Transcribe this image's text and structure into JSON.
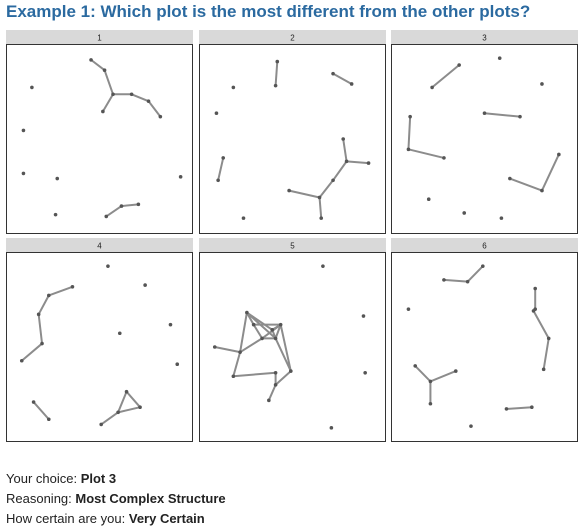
{
  "heading": "Example 1: Which plot is the most different from the other plots?",
  "footer": {
    "choice_label": "Your choice:",
    "choice_value": "Plot 3",
    "reasoning_label": "Reasoning:",
    "reasoning_value": "Most Complex Structure",
    "certainty_label": "How certain are you:",
    "certainty_value": "Very Certain"
  },
  "colors": {
    "heading": "#2b6aa0",
    "strip": "#d9d9d9",
    "panel_border": "#333333",
    "edge": "#8c8c8c",
    "node": "#555555"
  },
  "chart_data": {
    "type": "scatter",
    "description_kind": "lineup of network graphs",
    "xlim": [
      0,
      1
    ],
    "ylim": [
      0,
      1
    ],
    "grid": false,
    "legend": "none",
    "panels": [
      {
        "label": "1",
        "nodes": [
          [
            0.45,
            0.96
          ],
          [
            0.53,
            0.9
          ],
          [
            0.58,
            0.76
          ],
          [
            0.52,
            0.66
          ],
          [
            0.69,
            0.76
          ],
          [
            0.79,
            0.72
          ],
          [
            0.86,
            0.63
          ],
          [
            0.1,
            0.8
          ],
          [
            0.05,
            0.55
          ],
          [
            0.05,
            0.3
          ],
          [
            0.25,
            0.27
          ],
          [
            0.98,
            0.28
          ],
          [
            0.24,
            0.06
          ],
          [
            0.54,
            0.05
          ],
          [
            0.63,
            0.11
          ],
          [
            0.73,
            0.12
          ]
        ],
        "edges": [
          [
            0,
            1
          ],
          [
            1,
            2
          ],
          [
            2,
            3
          ],
          [
            2,
            4
          ],
          [
            4,
            5
          ],
          [
            5,
            6
          ],
          [
            13,
            14
          ],
          [
            14,
            15
          ]
        ]
      },
      {
        "label": "2",
        "nodes": [
          [
            0.41,
            0.95
          ],
          [
            0.4,
            0.81
          ],
          [
            0.15,
            0.8
          ],
          [
            0.74,
            0.88
          ],
          [
            0.85,
            0.82
          ],
          [
            0.05,
            0.65
          ],
          [
            0.09,
            0.39
          ],
          [
            0.06,
            0.26
          ],
          [
            0.8,
            0.5
          ],
          [
            0.82,
            0.37
          ],
          [
            0.95,
            0.36
          ],
          [
            0.74,
            0.26
          ],
          [
            0.66,
            0.16
          ],
          [
            0.48,
            0.2
          ],
          [
            0.67,
            0.04
          ],
          [
            0.21,
            0.04
          ]
        ],
        "edges": [
          [
            0,
            1
          ],
          [
            3,
            4
          ],
          [
            6,
            7
          ],
          [
            8,
            9
          ],
          [
            9,
            10
          ],
          [
            9,
            11
          ],
          [
            11,
            12
          ],
          [
            12,
            13
          ],
          [
            12,
            14
          ]
        ]
      },
      {
        "label": "3",
        "nodes": [
          [
            0.59,
            0.97
          ],
          [
            0.35,
            0.93
          ],
          [
            0.19,
            0.8
          ],
          [
            0.84,
            0.82
          ],
          [
            0.5,
            0.65
          ],
          [
            0.71,
            0.63
          ],
          [
            0.06,
            0.63
          ],
          [
            0.05,
            0.44
          ],
          [
            0.26,
            0.39
          ],
          [
            0.94,
            0.41
          ],
          [
            0.84,
            0.2
          ],
          [
            0.65,
            0.27
          ],
          [
            0.17,
            0.15
          ],
          [
            0.38,
            0.07
          ],
          [
            0.6,
            0.04
          ]
        ],
        "edges": [
          [
            1,
            2
          ],
          [
            4,
            5
          ],
          [
            6,
            7
          ],
          [
            7,
            8
          ],
          [
            9,
            10
          ],
          [
            10,
            11
          ]
        ]
      },
      {
        "label": "4",
        "nodes": [
          [
            0.55,
            0.97
          ],
          [
            0.34,
            0.85
          ],
          [
            0.2,
            0.8
          ],
          [
            0.77,
            0.86
          ],
          [
            0.14,
            0.69
          ],
          [
            0.16,
            0.52
          ],
          [
            0.04,
            0.42
          ],
          [
            0.62,
            0.58
          ],
          [
            0.92,
            0.63
          ],
          [
            0.96,
            0.4
          ],
          [
            0.11,
            0.18
          ],
          [
            0.2,
            0.08
          ],
          [
            0.66,
            0.24
          ],
          [
            0.61,
            0.12
          ],
          [
            0.74,
            0.15
          ],
          [
            0.51,
            0.05
          ]
        ],
        "edges": [
          [
            1,
            2
          ],
          [
            2,
            4
          ],
          [
            4,
            5
          ],
          [
            5,
            6
          ],
          [
            10,
            11
          ],
          [
            12,
            13
          ],
          [
            12,
            14
          ],
          [
            13,
            14
          ],
          [
            13,
            15
          ]
        ]
      },
      {
        "label": "5",
        "nodes": [
          [
            0.68,
            0.97
          ],
          [
            0.92,
            0.68
          ],
          [
            0.93,
            0.35
          ],
          [
            0.73,
            0.03
          ],
          [
            0.23,
            0.7
          ],
          [
            0.27,
            0.63
          ],
          [
            0.32,
            0.55
          ],
          [
            0.38,
            0.6
          ],
          [
            0.43,
            0.63
          ],
          [
            0.4,
            0.55
          ],
          [
            0.19,
            0.47
          ],
          [
            0.04,
            0.5
          ],
          [
            0.4,
            0.35
          ],
          [
            0.15,
            0.33
          ],
          [
            0.4,
            0.28
          ],
          [
            0.49,
            0.36
          ],
          [
            0.36,
            0.19
          ]
        ],
        "edges": [
          [
            4,
            5
          ],
          [
            4,
            7
          ],
          [
            4,
            9
          ],
          [
            5,
            6
          ],
          [
            5,
            8
          ],
          [
            6,
            8
          ],
          [
            6,
            9
          ],
          [
            7,
            8
          ],
          [
            7,
            9
          ],
          [
            8,
            9
          ],
          [
            4,
            10
          ],
          [
            6,
            10
          ],
          [
            10,
            11
          ],
          [
            10,
            13
          ],
          [
            12,
            13
          ],
          [
            12,
            14
          ],
          [
            14,
            15
          ],
          [
            14,
            16
          ],
          [
            8,
            15
          ],
          [
            9,
            15
          ]
        ]
      },
      {
        "label": "6",
        "nodes": [
          [
            0.26,
            0.89
          ],
          [
            0.4,
            0.88
          ],
          [
            0.49,
            0.97
          ],
          [
            0.8,
            0.84
          ],
          [
            0.8,
            0.72
          ],
          [
            0.05,
            0.72
          ],
          [
            0.79,
            0.71
          ],
          [
            0.88,
            0.55
          ],
          [
            0.85,
            0.37
          ],
          [
            0.09,
            0.39
          ],
          [
            0.18,
            0.3
          ],
          [
            0.18,
            0.17
          ],
          [
            0.33,
            0.36
          ],
          [
            0.63,
            0.14
          ],
          [
            0.78,
            0.15
          ],
          [
            0.42,
            0.04
          ]
        ],
        "edges": [
          [
            0,
            1
          ],
          [
            1,
            2
          ],
          [
            3,
            4
          ],
          [
            6,
            7
          ],
          [
            7,
            8
          ],
          [
            9,
            10
          ],
          [
            10,
            11
          ],
          [
            10,
            12
          ],
          [
            13,
            14
          ]
        ]
      }
    ]
  }
}
